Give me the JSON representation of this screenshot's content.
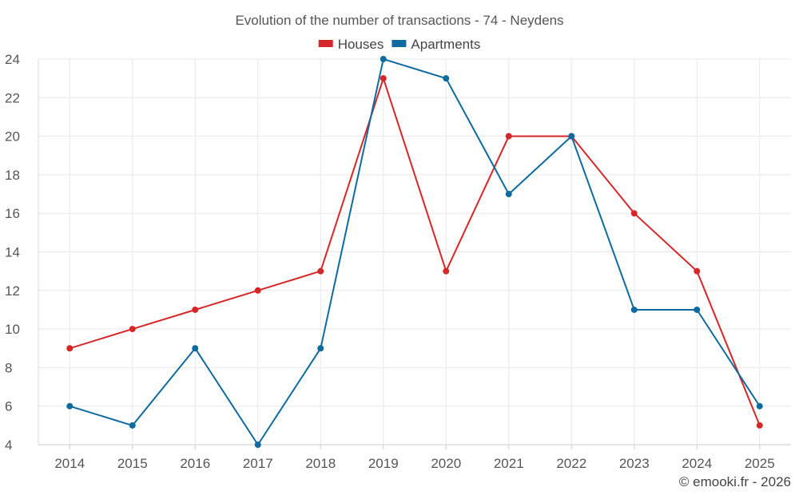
{
  "chart_data": {
    "type": "line",
    "title": "Evolution of the number of transactions - 74 - Neydens",
    "xlabel": "",
    "ylabel": "",
    "categories": [
      "2014",
      "2015",
      "2016",
      "2017",
      "2018",
      "2019",
      "2020",
      "2021",
      "2022",
      "2023",
      "2024",
      "2025"
    ],
    "ylim": [
      4,
      24
    ],
    "yticks": [
      4,
      6,
      8,
      10,
      12,
      14,
      16,
      18,
      20,
      22,
      24
    ],
    "grid": true,
    "legend_position": "top-center",
    "series": [
      {
        "name": "Houses",
        "color": "#d62728",
        "values": [
          9,
          10,
          11,
          12,
          13,
          23,
          13,
          20,
          20,
          16,
          13,
          5
        ]
      },
      {
        "name": "Apartments",
        "color": "#0f6a9f",
        "values": [
          6,
          5,
          9,
          4,
          9,
          24,
          23,
          17,
          20,
          11,
          11,
          6
        ]
      }
    ]
  },
  "footer": {
    "copyright": "© emooki.fr - 2026"
  }
}
